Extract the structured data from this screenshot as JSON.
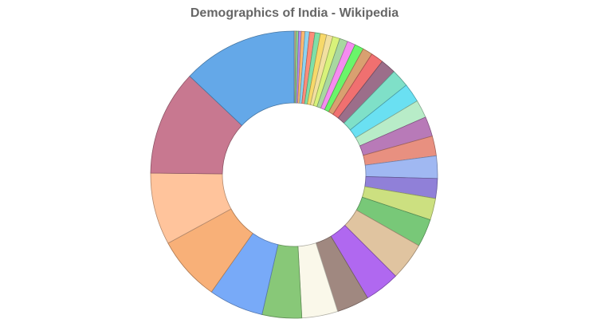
{
  "chart_data": {
    "type": "pie",
    "variant": "doughnut",
    "title": "Demographics of India - Wikipedia",
    "legend": "none",
    "start": "top, clockwise",
    "values": [
      0.2,
      0.3,
      0.3,
      0.4,
      0.5,
      0.6,
      0.6,
      0.7,
      0.7,
      0.8,
      0.9,
      0.9,
      1.0,
      1.1,
      1.4,
      1.7,
      2.0,
      2.1,
      2.0,
      2.2,
      2.2,
      2.5,
      2.2,
      2.4,
      3.1,
      4.2,
      3.9,
      3.6,
      4.0,
      4.4,
      6.1,
      7.2,
      8.0,
      11.7,
      12.8
    ],
    "colors": [
      "#d9b38c",
      "#8fd18f",
      "#b48cf2",
      "#ffb870",
      "#8cd3f2",
      "#ff8c7a",
      "#7fe0a8",
      "#f7d96a",
      "#f2e0a0",
      "#d8f27a",
      "#a8d8a0",
      "#f58cf0",
      "#6af56a",
      "#d9a070",
      "#f07070",
      "#9c6e8a",
      "#7fe0c8",
      "#6ae0f2",
      "#b8ecc8",
      "#b87ab8",
      "#e89080",
      "#a0b8f2",
      "#9080d8",
      "#cce080",
      "#78c878",
      "#e0c4a0",
      "#b068f0",
      "#a08880",
      "#faf8ea",
      "#88c878",
      "#78aaf8",
      "#f8b078",
      "#ffc49c",
      "#c87890",
      "#64a8e8"
    ]
  }
}
